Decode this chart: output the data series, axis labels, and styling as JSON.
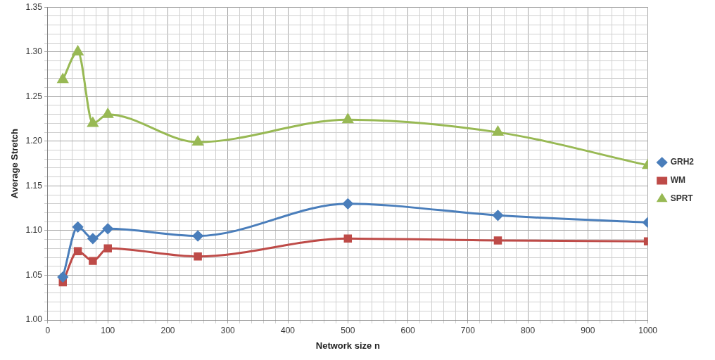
{
  "chart_data": {
    "type": "line",
    "xlabel": "Network size n",
    "ylabel": "Average Stretch",
    "x": [
      25,
      50,
      75,
      100,
      250,
      500,
      750,
      1000
    ],
    "series": [
      {
        "name": "GRH2",
        "color": "#4a7ebb",
        "marker": "diamond",
        "values": [
          1.048,
          1.104,
          1.091,
          1.102,
          1.094,
          1.13,
          1.117,
          1.109
        ]
      },
      {
        "name": "WM",
        "color": "#be4b48",
        "marker": "square",
        "values": [
          1.042,
          1.077,
          1.066,
          1.08,
          1.071,
          1.091,
          1.089,
          1.088
        ]
      },
      {
        "name": "SPRT",
        "color": "#98b954",
        "marker": "triangle",
        "values": [
          1.269,
          1.3,
          1.22,
          1.23,
          1.199,
          1.224,
          1.21,
          1.173
        ]
      }
    ],
    "xlim": [
      0,
      1000
    ],
    "xticks": [
      0,
      {
        "value": 20,
        "label": null
      },
      {
        "value": 40,
        "label": null
      },
      {
        "value": 60,
        "label": null
      },
      {
        "value": 80,
        "label": null
      },
      100,
      {
        "value": 120,
        "label": null
      },
      {
        "value": 140,
        "label": null
      },
      {
        "value": 160,
        "label": null
      },
      {
        "value": 180,
        "label": null
      },
      200,
      {
        "value": 220,
        "label": null
      },
      {
        "value": 240,
        "label": null
      },
      {
        "value": 260,
        "label": null
      },
      {
        "value": 280,
        "label": null
      },
      300,
      {
        "value": 320,
        "label": null
      },
      {
        "value": 340,
        "label": null
      },
      {
        "value": 360,
        "label": null
      },
      {
        "value": 380,
        "label": null
      },
      400,
      {
        "value": 420,
        "label": null
      },
      {
        "value": 440,
        "label": null
      },
      {
        "value": 460,
        "label": null
      },
      {
        "value": 480,
        "label": null
      },
      500,
      {
        "value": 520,
        "label": null
      },
      {
        "value": 540,
        "label": null
      },
      {
        "value": 560,
        "label": null
      },
      {
        "value": 580,
        "label": null
      },
      600,
      {
        "value": 620,
        "label": null
      },
      {
        "value": 640,
        "label": null
      },
      {
        "value": 660,
        "label": null
      },
      {
        "value": 680,
        "label": null
      },
      700,
      {
        "value": 720,
        "label": null
      },
      {
        "value": 740,
        "label": null
      },
      {
        "value": 760,
        "label": null
      },
      {
        "value": 780,
        "label": null
      },
      800,
      {
        "value": 820,
        "label": null
      },
      {
        "value": 840,
        "label": null
      },
      {
        "value": 860,
        "label": null
      },
      {
        "value": 880,
        "label": null
      },
      900,
      {
        "value": 920,
        "label": null
      },
      {
        "value": 940,
        "label": null
      },
      {
        "value": 960,
        "label": null
      },
      {
        "value": 980,
        "label": null
      },
      1000
    ],
    "ylim": [
      1.0,
      1.35
    ],
    "yticks": [
      {
        "value": 1.0,
        "label": "1.00"
      },
      {
        "value": 1.01,
        "label": null
      },
      {
        "value": 1.02,
        "label": null
      },
      {
        "value": 1.03,
        "label": null
      },
      {
        "value": 1.04,
        "label": null
      },
      {
        "value": 1.05,
        "label": "1.05"
      },
      {
        "value": 1.06,
        "label": null
      },
      {
        "value": 1.07,
        "label": null
      },
      {
        "value": 1.08,
        "label": null
      },
      {
        "value": 1.09,
        "label": null
      },
      {
        "value": 1.1,
        "label": "1.10"
      },
      {
        "value": 1.11,
        "label": null
      },
      {
        "value": 1.12,
        "label": null
      },
      {
        "value": 1.13,
        "label": null
      },
      {
        "value": 1.14,
        "label": null
      },
      {
        "value": 1.15,
        "label": "1.15"
      },
      {
        "value": 1.16,
        "label": null
      },
      {
        "value": 1.17,
        "label": null
      },
      {
        "value": 1.18,
        "label": null
      },
      {
        "value": 1.19,
        "label": null
      },
      {
        "value": 1.2,
        "label": "1.20"
      },
      {
        "value": 1.21,
        "label": null
      },
      {
        "value": 1.22,
        "label": null
      },
      {
        "value": 1.23,
        "label": null
      },
      {
        "value": 1.24,
        "label": null
      },
      {
        "value": 1.25,
        "label": "1.25"
      },
      {
        "value": 1.26,
        "label": null
      },
      {
        "value": 1.27,
        "label": null
      },
      {
        "value": 1.28,
        "label": null
      },
      {
        "value": 1.29,
        "label": null
      },
      {
        "value": 1.3,
        "label": "1.30"
      },
      {
        "value": 1.31,
        "label": null
      },
      {
        "value": 1.32,
        "label": null
      },
      {
        "value": 1.33,
        "label": null
      },
      {
        "value": 1.34,
        "label": null
      },
      {
        "value": 1.35,
        "label": "1.35"
      }
    ],
    "grid": true,
    "legend": "right"
  }
}
